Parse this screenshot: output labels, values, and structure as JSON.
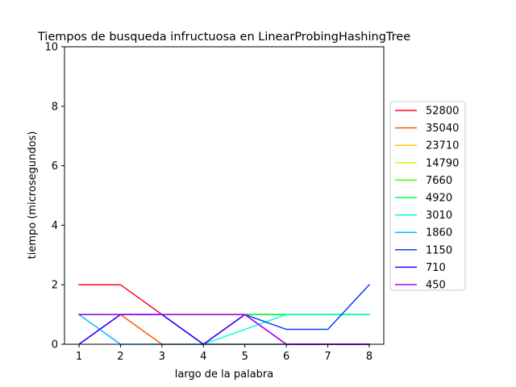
{
  "chart_data": {
    "type": "line",
    "title": "Tiempos de busqueda infructuosa en LinearProbingHashingTree",
    "xlabel": "largo de la palabra",
    "ylabel": "tiempo (microsegundos)",
    "xlim": [
      0.65,
      8.35
    ],
    "ylim": [
      0,
      10
    ],
    "xticks": [
      1,
      2,
      3,
      4,
      5,
      6,
      7,
      8
    ],
    "yticks": [
      0,
      2,
      4,
      6,
      8,
      10
    ],
    "grid": false,
    "legend_position": "right",
    "x": [
      1,
      2,
      3,
      4,
      5,
      6,
      7,
      8
    ],
    "series": [
      {
        "name": "52800",
        "color": "#ff0029",
        "values": [
          2,
          2,
          1,
          1,
          1,
          1,
          1,
          1
        ]
      },
      {
        "name": "35040",
        "color": "#ff5a00",
        "values": [
          1,
          1,
          0,
          0,
          0,
          0,
          0,
          0
        ]
      },
      {
        "name": "23710",
        "color": "#ffc800",
        "values": [
          1,
          1,
          1,
          1,
          1,
          1,
          1,
          1
        ]
      },
      {
        "name": "14790",
        "color": "#c3ff00",
        "values": [
          1,
          1,
          1,
          1,
          1,
          1,
          1,
          1
        ]
      },
      {
        "name": "7660",
        "color": "#37ff00",
        "values": [
          1,
          1,
          1,
          1,
          1,
          1,
          1,
          1
        ]
      },
      {
        "name": "4920",
        "color": "#00ff50",
        "values": [
          1,
          1,
          1,
          1,
          1,
          1,
          1,
          1
        ]
      },
      {
        "name": "3010",
        "color": "#00ffd5",
        "values": [
          1,
          1,
          1,
          0,
          0.5,
          1,
          1,
          1
        ]
      },
      {
        "name": "1860",
        "color": "#00b9ff",
        "values": [
          1,
          0,
          0,
          0,
          0,
          0,
          0,
          0
        ]
      },
      {
        "name": "1150",
        "color": "#0040ff",
        "values": [
          0,
          1,
          1,
          0,
          1,
          0.5,
          0.5,
          2
        ]
      },
      {
        "name": "710",
        "color": "#3c00ff",
        "values": [
          0,
          1,
          1,
          0,
          1,
          0,
          0,
          0
        ]
      },
      {
        "name": "450",
        "color": "#b500ff",
        "values": [
          1,
          1,
          1,
          1,
          1,
          0,
          0,
          0
        ]
      }
    ]
  }
}
